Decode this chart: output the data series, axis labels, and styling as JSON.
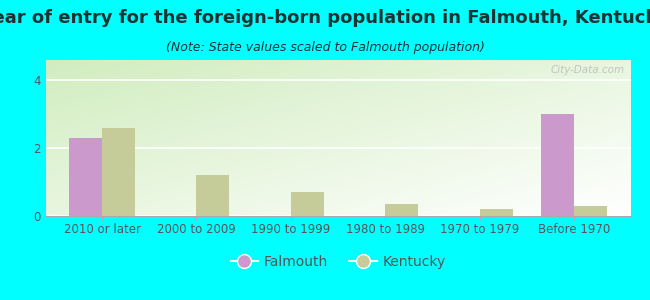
{
  "title": "Year of entry for the foreign-born population in Falmouth, Kentucky",
  "subtitle": "(Note: State values scaled to Falmouth population)",
  "categories": [
    "2010 or later",
    "2000 to 2009",
    "1990 to 1999",
    "1980 to 1989",
    "1970 to 1979",
    "Before 1970"
  ],
  "falmouth_values": [
    2.3,
    0,
    0,
    0,
    0,
    3.0
  ],
  "kentucky_values": [
    2.6,
    1.2,
    0.7,
    0.35,
    0.22,
    0.3
  ],
  "falmouth_color": "#cc99cc",
  "kentucky_color": "#c5cc99",
  "background_color": "#00ffff",
  "ylim": [
    0,
    4.6
  ],
  "yticks": [
    0,
    2,
    4
  ],
  "bar_width": 0.35,
  "title_fontsize": 13,
  "subtitle_fontsize": 9,
  "tick_fontsize": 8.5,
  "legend_fontsize": 10,
  "title_color": "#1a3333",
  "subtitle_color": "#1a3333",
  "tick_color": "#555555",
  "watermark": "City-Data.com"
}
